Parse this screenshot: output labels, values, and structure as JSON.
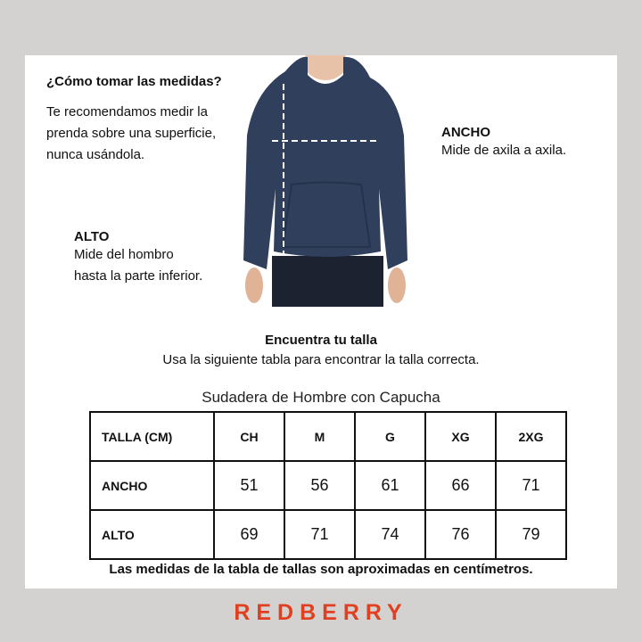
{
  "howto": {
    "title": "¿Cómo tomar las medidas?",
    "lines": [
      "Te recomendamos medir la",
      "prenda sobre una superficie,",
      "nunca usándola."
    ]
  },
  "ancho": {
    "title": "ANCHO",
    "desc": "Mide de axila a axila."
  },
  "alto": {
    "title": "ALTO",
    "lines": [
      "Mide del hombro",
      "hasta la parte inferior."
    ]
  },
  "find": {
    "title": "Encuentra tu talla",
    "subtitle": "Usa la siguiente tabla para encontrar la talla correcta."
  },
  "table": {
    "caption": "Sudadera de Hombre con Capucha",
    "headers": [
      "TALLA (CM)",
      "CH",
      "M",
      "G",
      "XG",
      "2XG"
    ],
    "rows": [
      {
        "label": "ANCHO",
        "values": [
          "51",
          "56",
          "61",
          "66",
          "71"
        ]
      },
      {
        "label": "ALTO",
        "values": [
          "69",
          "71",
          "74",
          "76",
          "79"
        ]
      }
    ]
  },
  "note": "Las medidas de la tabla de tallas son aproximadas en centímetros.",
  "brand": {
    "name": "REDBERRY",
    "color": "#e0401f"
  },
  "colors": {
    "background": "#d3d2d0",
    "hoodie": "#2f3f5c"
  }
}
